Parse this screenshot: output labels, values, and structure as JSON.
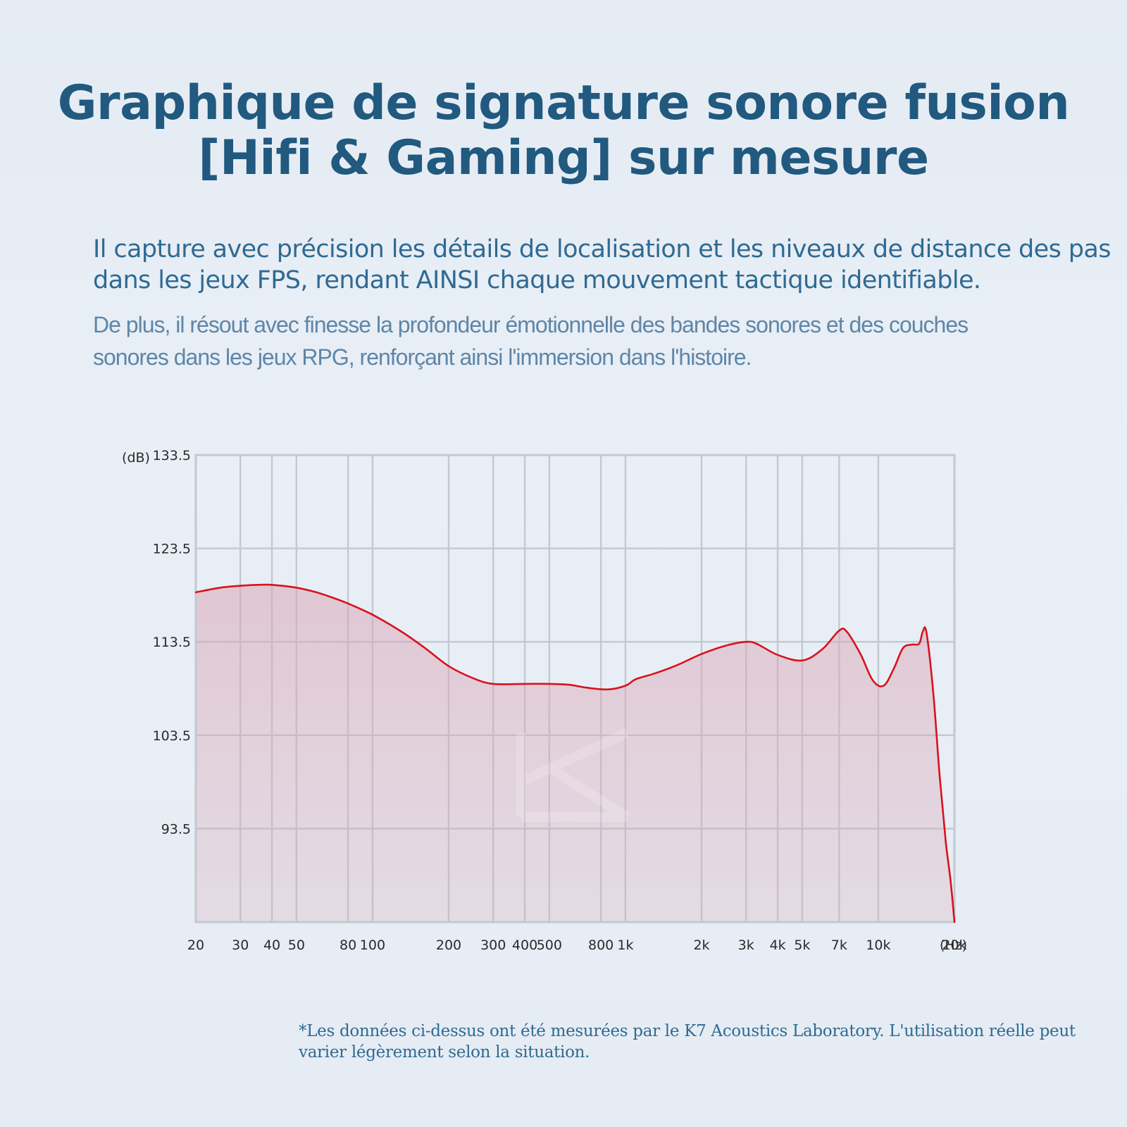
{
  "header": {
    "title": "Graphique de signature sonore fusion [Hifi & Gaming] sur mesure"
  },
  "description": {
    "paragraph_1": "Il capture avec précision les détails de localisation et les niveaux de distance des pas dans les jeux FPS, rendant AINSI chaque mouvement tactique identifiable.",
    "paragraph_2": "De plus, il résout avec finesse la profondeur émotionnelle des bandes sonores et des couches sonores dans les jeux RPG, renforçant ainsi l'immersion dans l'histoire."
  },
  "footnote": "*Les données ci-dessus ont été mesurées par le K7 Acoustics Laboratory. L'utilisation réelle peut varier légèrement selon la situation.",
  "colors": {
    "title": "#21597f",
    "curve": "#d8121e",
    "fill": "#d9a7b6",
    "grid": "#c3c8d1"
  },
  "chart_data": {
    "type": "line",
    "title": "",
    "xlabel": "",
    "ylabel": "",
    "y_unit_label": "(dB)",
    "x_unit_label": "(Hz)",
    "x_scale": "log",
    "xlim": [
      20,
      20000
    ],
    "ylim": [
      83.5,
      133.5
    ],
    "y_ticks": [
      133.5,
      123.5,
      113.5,
      103.5,
      93.5
    ],
    "x_ticks": [
      {
        "value": 20,
        "label": "20"
      },
      {
        "value": 30,
        "label": "30"
      },
      {
        "value": 40,
        "label": "40"
      },
      {
        "value": 50,
        "label": "50"
      },
      {
        "value": 80,
        "label": "80"
      },
      {
        "value": 100,
        "label": "100"
      },
      {
        "value": 200,
        "label": "200"
      },
      {
        "value": 300,
        "label": "300"
      },
      {
        "value": 400,
        "label": "400"
      },
      {
        "value": 500,
        "label": "500"
      },
      {
        "value": 800,
        "label": "800"
      },
      {
        "value": 1000,
        "label": "1k"
      },
      {
        "value": 2000,
        "label": "2k"
      },
      {
        "value": 3000,
        "label": "3k"
      },
      {
        "value": 4000,
        "label": "4k"
      },
      {
        "value": 5000,
        "label": "5k"
      },
      {
        "value": 7000,
        "label": "7k"
      },
      {
        "value": 10000,
        "label": "10k"
      },
      {
        "value": 20000,
        "label": "20k"
      }
    ],
    "grid": true,
    "legend": "none",
    "series": [
      {
        "points": [
          [
            20,
            118.8
          ],
          [
            25,
            119.3
          ],
          [
            30,
            119.5
          ],
          [
            35,
            119.6
          ],
          [
            40,
            119.6
          ],
          [
            50,
            119.3
          ],
          [
            60,
            118.8
          ],
          [
            70,
            118.2
          ],
          [
            80,
            117.6
          ],
          [
            100,
            116.4
          ],
          [
            130,
            114.6
          ],
          [
            160,
            112.9
          ],
          [
            200,
            110.9
          ],
          [
            250,
            109.6
          ],
          [
            300,
            109.0
          ],
          [
            400,
            109.0
          ],
          [
            500,
            109.0
          ],
          [
            600,
            108.9
          ],
          [
            700,
            108.6
          ],
          [
            850,
            108.4
          ],
          [
            1000,
            108.8
          ],
          [
            1100,
            109.5
          ],
          [
            1300,
            110.1
          ],
          [
            1600,
            111.0
          ],
          [
            2000,
            112.2
          ],
          [
            2500,
            113.1
          ],
          [
            3000,
            113.5
          ],
          [
            3300,
            113.3
          ],
          [
            4000,
            112.1
          ],
          [
            5000,
            111.5
          ],
          [
            6000,
            112.7
          ],
          [
            7000,
            114.7
          ],
          [
            7500,
            114.6
          ],
          [
            8500,
            112.2
          ],
          [
            9500,
            109.4
          ],
          [
            10500,
            108.8
          ],
          [
            11500,
            110.6
          ],
          [
            12500,
            112.8
          ],
          [
            13500,
            113.2
          ],
          [
            14500,
            113.3
          ],
          [
            15000,
            114.6
          ],
          [
            15500,
            114.5
          ],
          [
            16500,
            108.0
          ],
          [
            17500,
            99.0
          ],
          [
            18500,
            92.0
          ],
          [
            19300,
            88.0
          ],
          [
            20000,
            83.5
          ]
        ]
      }
    ]
  }
}
